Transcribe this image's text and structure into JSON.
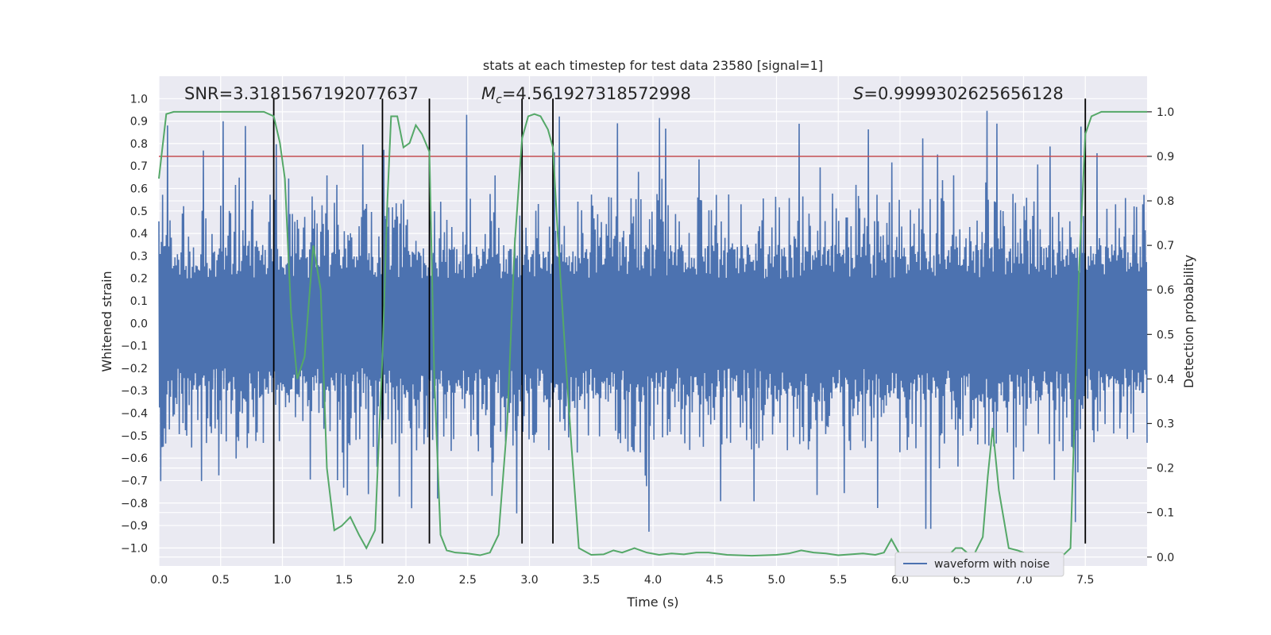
{
  "chart_data": {
    "type": "line",
    "title": "stats at each timestep for test data 23580 [signal=1]",
    "xlabel": "Time (s)",
    "ylabel_left": "Whitened strain",
    "ylabel_right": "Detection probability",
    "xlim": [
      0.0,
      8.0
    ],
    "ylim_left": [
      -1.08,
      1.1
    ],
    "ylim_right": [
      -0.02,
      1.08
    ],
    "xticks": [
      0.0,
      0.5,
      1.0,
      1.5,
      2.0,
      2.5,
      3.0,
      3.5,
      4.0,
      4.5,
      5.0,
      5.5,
      6.0,
      6.5,
      7.0,
      7.5
    ],
    "xtick_labels": [
      "0.0",
      "0.5",
      "1.0",
      "1.5",
      "2.0",
      "2.5",
      "3.0",
      "3.5",
      "4.0",
      "4.5",
      "5.0",
      "5.5",
      "6.0",
      "6.5",
      "7.0",
      "7.5"
    ],
    "yticks_left": [
      -1.0,
      -0.9,
      -0.8,
      -0.7,
      -0.6,
      -0.5,
      -0.4,
      -0.3,
      -0.2,
      -0.1,
      0.0,
      0.1,
      0.2,
      0.3,
      0.4,
      0.5,
      0.6,
      0.7,
      0.8,
      0.9,
      1.0
    ],
    "ytick_labels_left": [
      "−1.0",
      "−0.9",
      "−0.8",
      "−0.7",
      "−0.6",
      "−0.5",
      "−0.4",
      "−0.3",
      "−0.2",
      "−0.1",
      "0.0",
      "0.1",
      "0.2",
      "0.3",
      "0.4",
      "0.5",
      "0.6",
      "0.7",
      "0.8",
      "0.9",
      "1.0"
    ],
    "yticks_right": [
      0.0,
      0.1,
      0.2,
      0.3,
      0.4,
      0.5,
      0.6,
      0.7,
      0.8,
      0.9,
      1.0
    ],
    "ytick_labels_right": [
      "0.0",
      "0.1",
      "0.2",
      "0.3",
      "0.4",
      "0.5",
      "0.6",
      "0.7",
      "0.8",
      "0.9",
      "1.0"
    ],
    "annotations": {
      "snr": "SNR=3.3181567192077637",
      "mc_symbol": "M",
      "mc_sub": "c",
      "mc_value": "=4.561927318572998",
      "s_symbol": "S",
      "s_value": "=0.9999302625656128"
    },
    "legend": {
      "label": "waveform with noise",
      "location": "lower-right"
    },
    "threshold": {
      "value": 0.9,
      "axis": "right",
      "color": "#c44e52"
    },
    "vertical_lines": [
      0.93,
      1.81,
      2.19,
      2.94,
      3.19,
      7.5
    ],
    "vertical_line_range": [
      -0.98,
      1.0
    ],
    "waveform": {
      "name": "waveform with noise",
      "color": "#4c72b0",
      "samples": 1600,
      "envelope_typical": 0.55,
      "peak_max": 1.0,
      "trough_min": -0.98
    },
    "probability": {
      "name": "Detection probability",
      "color": "#55a868",
      "t": [
        0.0,
        0.06,
        0.12,
        0.3,
        0.5,
        0.7,
        0.85,
        0.93,
        0.98,
        1.02,
        1.07,
        1.12,
        1.18,
        1.25,
        1.31,
        1.36,
        1.42,
        1.48,
        1.55,
        1.62,
        1.68,
        1.75,
        1.81,
        1.85,
        1.88,
        1.93,
        1.98,
        2.03,
        2.08,
        2.13,
        2.19,
        2.23,
        2.28,
        2.33,
        2.4,
        2.5,
        2.6,
        2.68,
        2.75,
        2.82,
        2.88,
        2.94,
        2.99,
        3.04,
        3.09,
        3.15,
        3.19,
        3.23,
        3.28,
        3.34,
        3.4,
        3.5,
        3.6,
        3.68,
        3.75,
        3.85,
        3.95,
        4.05,
        4.15,
        4.25,
        4.35,
        4.45,
        4.6,
        4.8,
        5.0,
        5.1,
        5.2,
        5.3,
        5.4,
        5.5,
        5.6,
        5.7,
        5.8,
        5.87,
        5.93,
        6.0,
        6.1,
        6.2,
        6.3,
        6.4,
        6.45,
        6.5,
        6.55,
        6.6,
        6.67,
        6.71,
        6.75,
        6.8,
        6.88,
        6.95,
        7.05,
        7.2,
        7.32,
        7.38,
        7.45,
        7.5,
        7.55,
        7.63,
        7.7,
        8.0
      ],
      "p": [
        0.85,
        0.995,
        1.0,
        1.0,
        1.0,
        1.0,
        1.0,
        0.99,
        0.93,
        0.85,
        0.55,
        0.4,
        0.45,
        0.7,
        0.6,
        0.2,
        0.06,
        0.07,
        0.09,
        0.05,
        0.02,
        0.06,
        0.45,
        0.8,
        0.99,
        0.99,
        0.92,
        0.93,
        0.97,
        0.95,
        0.91,
        0.4,
        0.05,
        0.015,
        0.01,
        0.008,
        0.004,
        0.01,
        0.05,
        0.3,
        0.7,
        0.94,
        0.99,
        0.995,
        0.99,
        0.96,
        0.92,
        0.72,
        0.5,
        0.25,
        0.02,
        0.005,
        0.006,
        0.015,
        0.01,
        0.02,
        0.01,
        0.005,
        0.008,
        0.006,
        0.01,
        0.01,
        0.005,
        0.003,
        0.005,
        0.008,
        0.015,
        0.01,
        0.008,
        0.004,
        0.006,
        0.008,
        0.005,
        0.01,
        0.04,
        0.005,
        0.003,
        0.003,
        0.003,
        0.006,
        0.02,
        0.02,
        0.008,
        0.006,
        0.045,
        0.18,
        0.29,
        0.15,
        0.02,
        0.015,
        0.005,
        0.003,
        0.004,
        0.02,
        0.65,
        0.95,
        0.99,
        1.0,
        1.0,
        1.0
      ]
    }
  }
}
